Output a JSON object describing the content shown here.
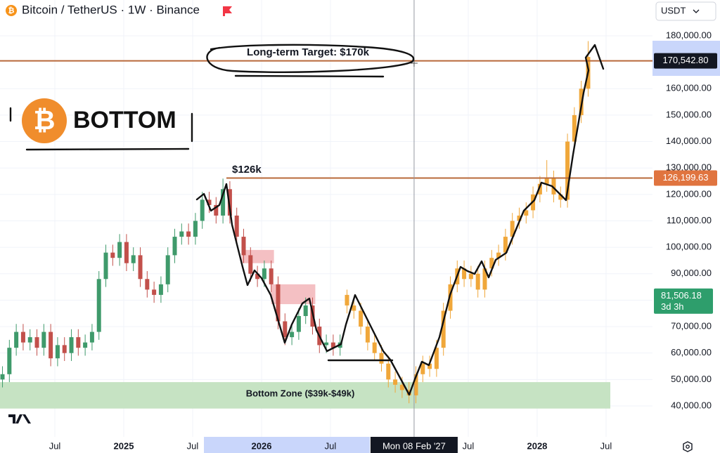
{
  "chart_data": {
    "type": "candlestick",
    "title": "Bitcoin / TetherUS · 1W · Binance",
    "currency": "USDT",
    "xlim": [
      2024.102,
      2028.837
    ],
    "ylim": [
      28300,
      193550
    ],
    "xticks": [
      {
        "value": 2024.5,
        "label": "Jul"
      },
      2025,
      {
        "value": 2025.5,
        "label": "Jul"
      },
      2026,
      {
        "value": 2026.5,
        "label": "Jul"
      },
      {
        "value": 2027.5,
        "label": "Jul"
      },
      2028,
      {
        "value": 2028.5,
        "label": "Jul"
      }
    ],
    "yticks": [
      {
        "value": 40000,
        "label": "40,000.00"
      },
      {
        "value": 50000,
        "label": "50,000.00"
      },
      {
        "value": 60000,
        "label": "60,000.00"
      },
      {
        "value": 70000,
        "label": "70,000.00"
      },
      {
        "value": 80000,
        "label": "80,000.00"
      },
      {
        "value": 90000,
        "label": "90,000.00"
      },
      {
        "value": 100000,
        "label": "100,000.00"
      },
      {
        "value": 110000,
        "label": "110,000.00"
      },
      {
        "value": 120000,
        "label": "120,000.00"
      },
      {
        "value": 130000,
        "label": "130,000.00"
      },
      {
        "value": 140000,
        "label": "140,000.00"
      },
      {
        "value": 150000,
        "label": "150,000.00"
      },
      {
        "value": 160000,
        "label": "160,000.00"
      },
      {
        "value": 180000,
        "label": "180,000.00"
      }
    ],
    "grid": true,
    "candles": {
      "up_color": "#3f9a6b",
      "down_color": "#c2504b",
      "x": [
        2024.12,
        2024.17,
        2024.22,
        2024.27,
        2024.32,
        2024.37,
        2024.42,
        2024.47,
        2024.52,
        2024.57,
        2024.62,
        2024.67,
        2024.72,
        2024.77,
        2024.82,
        2024.87,
        2024.92,
        2024.97,
        2025.02,
        2025.07,
        2025.12,
        2025.17,
        2025.22,
        2025.27,
        2025.32,
        2025.37,
        2025.42,
        2025.47,
        2025.52,
        2025.57,
        2025.62,
        2025.67,
        2025.72,
        2025.77,
        2025.82,
        2025.87,
        2025.92,
        2025.97,
        2026.02,
        2026.07,
        2026.12,
        2026.17,
        2026.22,
        2026.27,
        2026.32,
        2026.37,
        2026.42,
        2026.47,
        2026.52,
        2026.57
      ],
      "open": [
        50000,
        52000,
        62000,
        68000,
        64000,
        66000,
        62000,
        68000,
        58000,
        63000,
        60000,
        66000,
        62000,
        64000,
        68000,
        88000,
        98000,
        96000,
        102000,
        94000,
        97000,
        88000,
        84000,
        82000,
        86000,
        97000,
        104000,
        106000,
        104000,
        110000,
        118000,
        116000,
        112000,
        122000,
        112000,
        104000,
        97000,
        90000,
        88000,
        92000,
        86000,
        72000,
        66000,
        68000,
        74000,
        78000,
        70000,
        63000,
        64000,
        62000
      ],
      "high": [
        55000,
        65000,
        71000,
        71000,
        69000,
        69000,
        71000,
        71000,
        66000,
        66000,
        69000,
        69000,
        67000,
        71000,
        91000,
        101000,
        101000,
        105000,
        105000,
        100000,
        100000,
        91000,
        87000,
        89000,
        100000,
        107000,
        109000,
        109000,
        113000,
        121000,
        121000,
        119000,
        126000,
        125000,
        115000,
        107000,
        100000,
        93000,
        95000,
        95000,
        89000,
        75000,
        71000,
        77000,
        81000,
        81000,
        73000,
        67000,
        67000,
        67000
      ],
      "low": [
        47000,
        49000,
        59000,
        61000,
        61000,
        59000,
        59000,
        55000,
        55000,
        57000,
        57000,
        59000,
        59000,
        61000,
        65000,
        85000,
        93000,
        93000,
        91000,
        91000,
        85000,
        81000,
        79000,
        79000,
        83000,
        94000,
        101000,
        101000,
        101000,
        107000,
        113000,
        109000,
        109000,
        109000,
        101000,
        94000,
        87000,
        85000,
        85000,
        83000,
        69000,
        63000,
        63000,
        65000,
        71000,
        67000,
        60000,
        60000,
        59000,
        59000
      ],
      "close": [
        52000,
        62000,
        68000,
        64000,
        66000,
        62000,
        68000,
        58000,
        63000,
        60000,
        66000,
        62000,
        64000,
        68000,
        88000,
        98000,
        96000,
        102000,
        94000,
        97000,
        88000,
        84000,
        82000,
        86000,
        97000,
        104000,
        106000,
        104000,
        110000,
        118000,
        116000,
        112000,
        122000,
        112000,
        104000,
        97000,
        90000,
        88000,
        92000,
        86000,
        72000,
        66000,
        68000,
        74000,
        78000,
        70000,
        63000,
        64000,
        62000,
        64000
      ]
    },
    "projection": {
      "color": "#f0a73a",
      "x": [
        2026.62,
        2026.67,
        2026.72,
        2026.77,
        2026.82,
        2026.87,
        2026.92,
        2026.97,
        2027.02,
        2027.07,
        2027.12,
        2027.17,
        2027.22,
        2027.27,
        2027.32,
        2027.37,
        2027.42,
        2027.47,
        2027.52,
        2027.57,
        2027.62,
        2027.67,
        2027.72,
        2027.77,
        2027.82,
        2027.87,
        2027.92,
        2027.97,
        2028.02,
        2028.07,
        2028.12,
        2028.17,
        2028.22,
        2028.27,
        2028.32,
        2028.37
      ],
      "open": [
        82000,
        78000,
        76000,
        70000,
        64000,
        60000,
        56000,
        50000,
        48000,
        46000,
        44000,
        52000,
        56000,
        54000,
        62000,
        76000,
        86000,
        92000,
        88000,
        90000,
        84000,
        92000,
        96000,
        98000,
        104000,
        110000,
        112000,
        114000,
        120000,
        124000,
        126000,
        120000,
        118000,
        140000,
        150000,
        160000
      ],
      "high": [
        84000,
        81000,
        79000,
        73000,
        67000,
        63000,
        59000,
        53000,
        51000,
        49000,
        55000,
        59000,
        59000,
        65000,
        79000,
        89000,
        95000,
        95000,
        93000,
        93000,
        95000,
        99000,
        101000,
        107000,
        113000,
        115000,
        117000,
        123000,
        127000,
        133000,
        129000,
        123000,
        143000,
        153000,
        163000,
        178000
      ],
      "low": [
        75000,
        73000,
        67000,
        61000,
        57000,
        53000,
        47000,
        45000,
        43000,
        41000,
        41000,
        49000,
        51000,
        51000,
        59000,
        73000,
        83000,
        85000,
        85000,
        81000,
        81000,
        89000,
        93000,
        95000,
        101000,
        107000,
        109000,
        111000,
        117000,
        121000,
        117000,
        115000,
        115000,
        137000,
        147000,
        157000
      ],
      "close": [
        78000,
        76000,
        70000,
        64000,
        60000,
        56000,
        50000,
        48000,
        46000,
        44000,
        52000,
        56000,
        54000,
        62000,
        76000,
        86000,
        92000,
        88000,
        90000,
        84000,
        92000,
        96000,
        98000,
        104000,
        110000,
        112000,
        114000,
        120000,
        124000,
        126000,
        120000,
        118000,
        140000,
        150000,
        160000,
        172000
      ]
    },
    "levels": [
      {
        "value": 170542.8,
        "label": "170,542.80",
        "from": 2024.102,
        "color": "#b8693a",
        "tag_color": "#131722",
        "annotation": "Long-term Target: $170k"
      },
      {
        "value": 126199.63,
        "label": "126,199.63",
        "from": 2025.745,
        "color": "#b8693a",
        "tag_color": "#e0743f",
        "annotation": "$126k"
      }
    ],
    "current_price": {
      "value": 81506.18,
      "label": "81,506.18",
      "countdown": "3d 3h",
      "color": "#2e9e6c"
    },
    "zones": [
      {
        "low": 94000,
        "high": 99000,
        "x": [
          2025.855,
          2026.09
        ],
        "color": "#f3b9bc"
      },
      {
        "low": 78500,
        "high": 86000,
        "x": [
          2026.07,
          2026.39
        ],
        "color": "#f3b9bc"
      }
    ],
    "bottom_zone": {
      "low": 39000,
      "high": 49000,
      "label": "Bottom Zone ($39k-$49k)",
      "color": "#c3e2c0"
    },
    "crosshair": {
      "value": 2027.107,
      "label": "Mon 08 Feb '27"
    },
    "badge": {
      "symbol": "₿",
      "text": "BOTTOM"
    }
  }
}
